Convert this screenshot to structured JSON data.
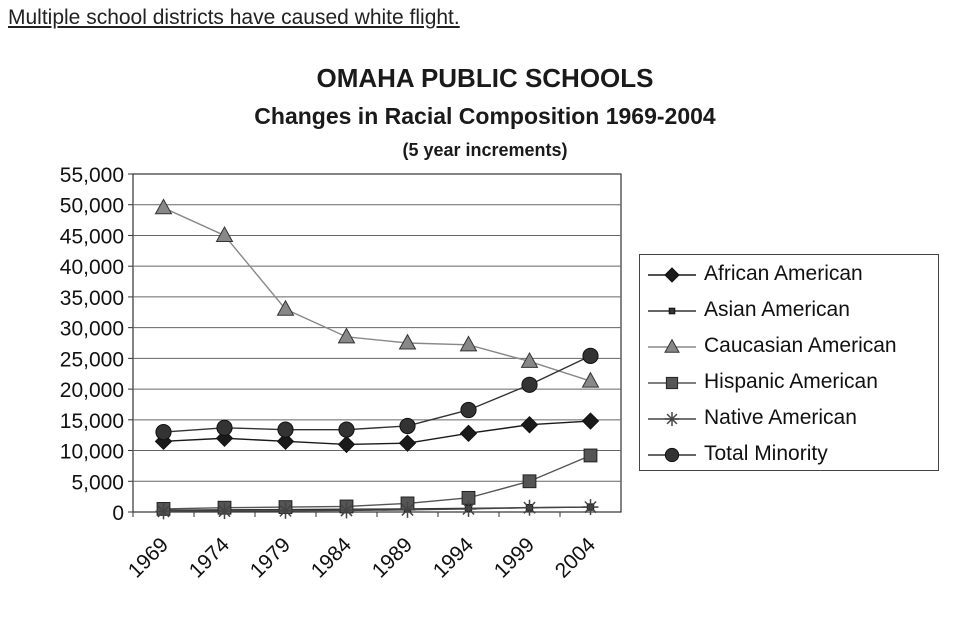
{
  "header": {
    "text": "Multiple school districts have caused white flight."
  },
  "chart_data": {
    "type": "line",
    "title": "OMAHA PUBLIC SCHOOLS",
    "subtitle": "Changes in Racial Composition 1969-2004",
    "note": "(5 year increments)",
    "categories": [
      "1969",
      "1974",
      "1979",
      "1984",
      "1989",
      "1994",
      "1999",
      "2004"
    ],
    "y_ticks": [
      "0",
      "5,000",
      "10,000",
      "15,000",
      "20,000",
      "25,000",
      "30,000",
      "35,000",
      "40,000",
      "45,000",
      "50,000",
      "55,000"
    ],
    "ylim": [
      0,
      55000
    ],
    "grid": true,
    "legend_position": "right",
    "series": [
      {
        "name": "African American",
        "marker": "diamond",
        "color": "#1a1a1a",
        "values": [
          11500,
          12000,
          11500,
          11000,
          11200,
          12800,
          14200,
          14800
        ]
      },
      {
        "name": "Asian American",
        "marker": "small-square",
        "color": "#333333",
        "values": [
          300,
          350,
          400,
          450,
          500,
          600,
          700,
          800
        ]
      },
      {
        "name": "Caucasian American",
        "marker": "triangle",
        "color": "#888888",
        "values": [
          49500,
          45000,
          33000,
          28500,
          27500,
          27200,
          24500,
          21300
        ]
      },
      {
        "name": "Hispanic American",
        "marker": "square",
        "color": "#555555",
        "values": [
          500,
          700,
          800,
          900,
          1400,
          2300,
          5000,
          9200
        ]
      },
      {
        "name": "Native American",
        "marker": "asterisk",
        "color": "#444444",
        "values": [
          100,
          150,
          200,
          250,
          350,
          500,
          700,
          800
        ]
      },
      {
        "name": "Total Minority",
        "marker": "circle",
        "color": "#333333",
        "values": [
          13000,
          13700,
          13400,
          13400,
          14000,
          16600,
          20700,
          25400
        ]
      }
    ]
  }
}
